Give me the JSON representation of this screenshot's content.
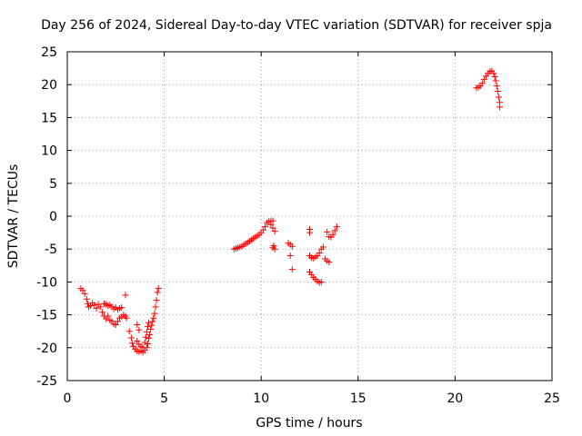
{
  "chart_data": {
    "type": "scatter",
    "title": "Day 256 of 2024, Sidereal Day-to-day VTEC variation (SDTVAR) for receiver spja",
    "xlabel": "GPS time / hours",
    "ylabel": "SDTVAR / TECUs",
    "xlim": [
      0,
      25
    ],
    "ylim": [
      -25,
      25
    ],
    "xticks": [
      0,
      5,
      10,
      15,
      20,
      25
    ],
    "yticks": [
      -25,
      -20,
      -15,
      -10,
      -5,
      0,
      5,
      10,
      15,
      20,
      25
    ],
    "xtick_labels": [
      "0",
      "5",
      "10",
      "15",
      "20",
      "25"
    ],
    "ytick_labels": [
      "-25",
      "-20",
      "-15",
      "-10",
      "-5",
      "0",
      "5",
      "10",
      "15",
      "20",
      "25"
    ],
    "grid": true,
    "marker": "+",
    "color": "#ff0000",
    "segments": [
      {
        "name": "arc-1",
        "points": [
          [
            0.7,
            -11.0
          ],
          [
            0.8,
            -11.3
          ],
          [
            0.9,
            -11.8
          ],
          [
            1.0,
            -12.6
          ],
          [
            1.05,
            -13.3
          ],
          [
            1.1,
            -13.8
          ],
          [
            1.2,
            -13.6
          ],
          [
            1.3,
            -13.2
          ],
          [
            1.4,
            -13.5
          ],
          [
            1.5,
            -14.0
          ],
          [
            1.6,
            -13.4
          ],
          [
            1.7,
            -13.8
          ],
          [
            1.8,
            -14.6
          ],
          [
            1.9,
            -15.2
          ],
          [
            2.0,
            -15.6
          ],
          [
            2.1,
            -15.2
          ],
          [
            2.2,
            -15.8
          ],
          [
            2.3,
            -16.0
          ],
          [
            2.4,
            -16.4
          ],
          [
            2.5,
            -16.5
          ],
          [
            2.6,
            -16.0
          ],
          [
            2.7,
            -15.5
          ],
          [
            2.8,
            -15.3
          ],
          [
            1.9,
            -13.3
          ],
          [
            2.0,
            -13.4
          ],
          [
            2.1,
            -13.6
          ],
          [
            2.2,
            -13.5
          ],
          [
            2.3,
            -13.8
          ],
          [
            2.4,
            -14.1
          ],
          [
            2.5,
            -13.9
          ],
          [
            2.6,
            -14.2
          ],
          [
            2.7,
            -14.0
          ],
          [
            2.8,
            -13.9
          ],
          [
            2.9,
            -15.0
          ],
          [
            3.0,
            -15.2
          ],
          [
            3.05,
            -15.5
          ],
          [
            3.0,
            -12.0
          ]
        ]
      },
      {
        "name": "arc-2",
        "points": [
          [
            3.2,
            -17.5
          ],
          [
            3.3,
            -18.5
          ],
          [
            3.35,
            -19.3
          ],
          [
            3.4,
            -19.8
          ],
          [
            3.5,
            -20.2
          ],
          [
            3.6,
            -20.5
          ],
          [
            3.7,
            -20.6
          ],
          [
            3.8,
            -20.5
          ],
          [
            3.9,
            -20.7
          ],
          [
            4.0,
            -20.4
          ],
          [
            4.1,
            -20.0
          ],
          [
            4.15,
            -19.4
          ],
          [
            4.2,
            -18.6
          ],
          [
            4.25,
            -18.0
          ],
          [
            4.3,
            -17.2
          ],
          [
            4.35,
            -16.6
          ],
          [
            4.4,
            -16.0
          ],
          [
            4.45,
            -15.5
          ],
          [
            4.5,
            -14.8
          ],
          [
            4.55,
            -13.8
          ],
          [
            4.6,
            -12.8
          ],
          [
            4.65,
            -11.6
          ],
          [
            4.7,
            -11.0
          ],
          [
            3.6,
            -19.0
          ],
          [
            3.7,
            -19.5
          ],
          [
            3.8,
            -19.8
          ],
          [
            3.9,
            -20.0
          ],
          [
            4.0,
            -19.2
          ],
          [
            4.05,
            -18.4
          ],
          [
            4.1,
            -17.6
          ],
          [
            4.15,
            -16.8
          ],
          [
            4.2,
            -16.2
          ],
          [
            3.6,
            -16.5
          ],
          [
            3.7,
            -17.3
          ]
        ]
      },
      {
        "name": "arc-3",
        "points": [
          [
            8.6,
            -5.0
          ],
          [
            8.7,
            -4.9
          ],
          [
            8.8,
            -4.8
          ],
          [
            8.9,
            -4.7
          ],
          [
            9.0,
            -4.6
          ],
          [
            9.1,
            -4.4
          ],
          [
            9.2,
            -4.2
          ],
          [
            9.3,
            -4.0
          ],
          [
            9.4,
            -3.8
          ],
          [
            9.5,
            -3.6
          ],
          [
            9.6,
            -3.4
          ],
          [
            9.7,
            -3.2
          ],
          [
            9.8,
            -3.0
          ],
          [
            9.9,
            -2.8
          ],
          [
            10.0,
            -2.5
          ],
          [
            10.1,
            -2.1
          ],
          [
            10.2,
            -1.6
          ],
          [
            10.3,
            -1.0
          ],
          [
            10.4,
            -0.8
          ],
          [
            10.5,
            -0.7
          ],
          [
            10.6,
            -0.7
          ],
          [
            10.5,
            -1.3
          ],
          [
            10.6,
            -1.8
          ],
          [
            10.7,
            -2.3
          ],
          [
            10.6,
            -4.8
          ],
          [
            10.7,
            -5.0
          ],
          [
            10.65,
            -4.5
          ]
        ]
      },
      {
        "name": "arc-4",
        "points": [
          [
            11.4,
            -4.1
          ],
          [
            11.5,
            -4.3
          ],
          [
            11.6,
            -4.6
          ],
          [
            11.5,
            -6.0
          ],
          [
            11.6,
            -8.1
          ]
        ]
      },
      {
        "name": "arc-5",
        "points": [
          [
            12.5,
            -6.0
          ],
          [
            12.6,
            -6.3
          ],
          [
            12.7,
            -6.4
          ],
          [
            12.8,
            -6.2
          ],
          [
            12.9,
            -6.0
          ],
          [
            13.0,
            -5.6
          ],
          [
            13.1,
            -5.0
          ],
          [
            13.2,
            -4.7
          ],
          [
            12.5,
            -2.0
          ],
          [
            12.5,
            -2.5
          ],
          [
            12.5,
            -8.5
          ],
          [
            12.6,
            -8.9
          ],
          [
            12.7,
            -9.3
          ],
          [
            12.8,
            -9.6
          ],
          [
            12.9,
            -9.9
          ],
          [
            13.0,
            -10.1
          ],
          [
            13.1,
            -10.0
          ]
        ]
      },
      {
        "name": "arc-6",
        "points": [
          [
            13.3,
            -6.5
          ],
          [
            13.4,
            -6.8
          ],
          [
            13.5,
            -7.0
          ],
          [
            13.6,
            -3.2
          ],
          [
            13.7,
            -2.8
          ],
          [
            13.8,
            -2.2
          ],
          [
            13.9,
            -1.6
          ],
          [
            13.4,
            -2.4
          ],
          [
            13.5,
            -3.1
          ]
        ]
      },
      {
        "name": "arc-7",
        "points": [
          [
            21.1,
            19.5
          ],
          [
            21.2,
            19.6
          ],
          [
            21.3,
            19.8
          ],
          [
            21.4,
            20.2
          ],
          [
            21.5,
            20.8
          ],
          [
            21.6,
            21.3
          ],
          [
            21.7,
            21.7
          ],
          [
            21.8,
            22.0
          ],
          [
            21.9,
            22.1
          ],
          [
            22.0,
            21.7
          ],
          [
            22.05,
            21.2
          ],
          [
            22.1,
            20.6
          ],
          [
            22.15,
            19.8
          ],
          [
            22.2,
            19.0
          ],
          [
            22.25,
            18.1
          ],
          [
            22.3,
            17.3
          ],
          [
            22.3,
            16.6
          ]
        ]
      }
    ]
  }
}
